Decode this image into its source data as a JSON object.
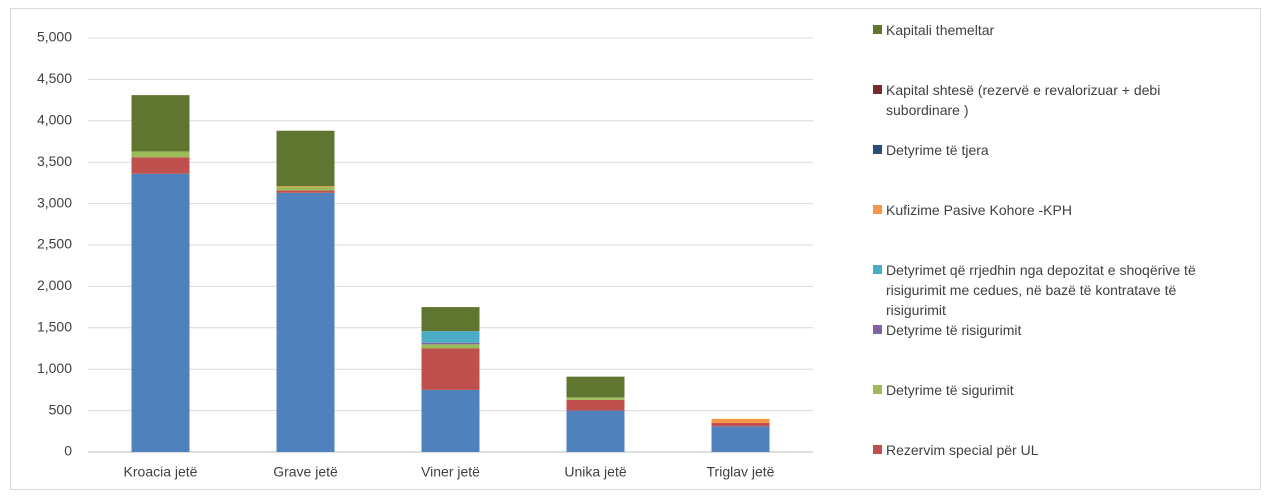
{
  "chart_data": {
    "type": "bar",
    "stacked": true,
    "categories": [
      "Kroacia jetë",
      "Grave jetë",
      "Viner jetë",
      "Unika jetë",
      "Triglav jetë"
    ],
    "series": [
      {
        "color": "#4f81bd",
        "values": [
          3360,
          3130,
          750,
          500,
          310
        ]
      },
      {
        "name": "Rezervim special për UL",
        "color": "#c0504d",
        "values": [
          200,
          30,
          500,
          130,
          40
        ]
      },
      {
        "name": "Detyrime të sigurimit",
        "color": "#9bbb59",
        "values": [
          70,
          40,
          50,
          30,
          0
        ]
      },
      {
        "name": "Detyrime të risigurimit",
        "color": "#8064a2",
        "values": [
          0,
          0,
          20,
          0,
          0
        ]
      },
      {
        "name": "Detyrimet që rrjedhin nga depozitat e shoqërive të risigurimit me cedues, në bazë të kontratave të risigurimit",
        "color": "#4bacc6",
        "values": [
          0,
          0,
          140,
          0,
          0
        ]
      },
      {
        "name": "Kufizime Pasive Kohore -KPH",
        "color": "#f79646",
        "values": [
          0,
          10,
          0,
          0,
          50
        ]
      },
      {
        "name": "Detyrime të tjera",
        "color": "#2c4d75",
        "values": [
          0,
          0,
          0,
          0,
          0
        ]
      },
      {
        "name": "Kapital shtesë (rezervë e revalorizuar + debi subordinare )",
        "color": "#772c2a",
        "values": [
          0,
          0,
          0,
          0,
          0
        ]
      },
      {
        "name": "Kapitali themeltar",
        "color": "#5f7530",
        "values": [
          680,
          670,
          290,
          250,
          0
        ]
      }
    ],
    "ylim": [
      0,
      5000
    ],
    "yticks": [
      0,
      500,
      {
        "value": 1000,
        "label": "1,000"
      },
      {
        "value": 1500,
        "label": "1,500"
      },
      {
        "value": 2000,
        "label": "2,000"
      },
      {
        "value": 2500,
        "label": "2,500"
      },
      {
        "value": 3000,
        "label": "3,000"
      },
      {
        "value": 3500,
        "label": "3,500"
      },
      {
        "value": 4000,
        "label": "4,000"
      },
      {
        "value": 4500,
        "label": "4,500"
      },
      {
        "value": 5000,
        "label": "5,000"
      }
    ],
    "grid": true,
    "legend": "right"
  }
}
